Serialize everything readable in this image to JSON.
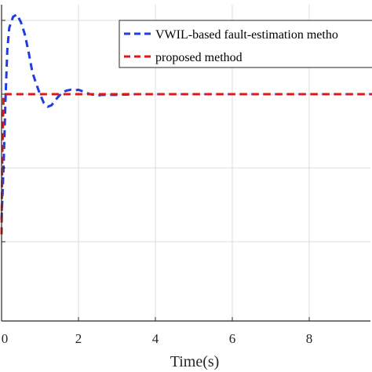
{
  "chart_data": {
    "type": "line",
    "xlabel": "Time(s)",
    "ylabel": "",
    "xlim": [
      0,
      10
    ],
    "ylim": [
      -2.2,
      1.2
    ],
    "x_ticks": [
      0,
      2,
      4,
      6,
      8
    ],
    "x_tick_labels": [
      "0",
      "2",
      "4",
      "6",
      "8"
    ],
    "grid": true,
    "legend_position": "top-right",
    "series": [
      {
        "name": "VWIL-based fault-estimation metho",
        "color": "#1f3de0",
        "style": "dashed",
        "x": [
          0,
          0.05,
          0.1,
          0.15,
          0.2,
          0.3,
          0.4,
          0.5,
          0.6,
          0.7,
          0.8,
          0.9,
          1.0,
          1.1,
          1.2,
          1.3,
          1.4,
          1.5,
          1.6,
          1.7,
          1.8,
          1.9,
          2.0,
          2.1,
          2.2,
          2.3,
          2.4,
          2.5,
          2.6,
          2.8,
          3.0,
          3.5,
          4.0,
          5.0,
          6.0,
          7.0,
          8.0,
          9.0,
          10.0
        ],
        "y": [
          -1.7,
          -1.0,
          -0.1,
          0.6,
          0.9,
          1.05,
          1.08,
          0.98,
          0.82,
          0.58,
          0.3,
          0.14,
          0.0,
          -0.12,
          -0.17,
          -0.15,
          -0.08,
          -0.02,
          0.03,
          0.05,
          0.06,
          0.05,
          0.06,
          0.04,
          0.02,
          0.0,
          -0.01,
          -0.02,
          -0.01,
          -0.01,
          -0.01,
          0.0,
          0.0,
          0.0,
          0.0,
          0.0,
          0.0,
          0.0,
          0.0
        ]
      },
      {
        "name": "proposed method",
        "color": "#e01818",
        "style": "dashed",
        "x": [
          0,
          0.02,
          0.05,
          10.0
        ],
        "y": [
          -1.9,
          -0.8,
          0.0,
          0.0
        ]
      }
    ]
  }
}
